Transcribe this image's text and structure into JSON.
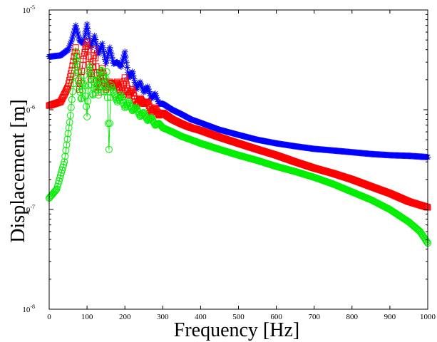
{
  "chart_data": {
    "type": "line",
    "title": "",
    "xlabel": "Frequency [Hz]",
    "ylabel": "Displacement [m]",
    "xlim": [
      0,
      1000
    ],
    "ylim": [
      1e-08,
      1e-05
    ],
    "yscale": "log",
    "grid": false,
    "legend": "none",
    "xticks": [
      0,
      100,
      200,
      300,
      400,
      500,
      600,
      700,
      800,
      900,
      1000
    ],
    "yticks": [
      {
        "value": 1e-08,
        "base": "10",
        "exp": "-8"
      },
      {
        "value": 1e-07,
        "base": "10",
        "exp": "-7"
      },
      {
        "value": 1e-06,
        "base": "10",
        "exp": "-6"
      },
      {
        "value": 1e-05,
        "base": "10",
        "exp": "-5"
      }
    ],
    "series": [
      {
        "color": "#0000ff",
        "marker": "star",
        "x": [
          0,
          30,
          50,
          60,
          70,
          80,
          90,
          100,
          110,
          120,
          130,
          140,
          150,
          160,
          170,
          180,
          190,
          200,
          210,
          220,
          230,
          240,
          250,
          260,
          270,
          280,
          290,
          300,
          325,
          350,
          375,
          400,
          450,
          500,
          550,
          600,
          650,
          700,
          750,
          800,
          850,
          900,
          950,
          1000
        ],
        "y": [
          3.4e-06,
          3.5e-06,
          4e-06,
          5e-06,
          7e-06,
          5e-06,
          4.6e-06,
          7.2e-06,
          4.2e-06,
          5.5e-06,
          3.6e-06,
          4.6e-06,
          2.9e-06,
          4.2e-06,
          2.9e-06,
          3e-06,
          2.7e-06,
          3.8e-06,
          2.1e-06,
          2.4e-06,
          1.6e-06,
          1.9e-06,
          1.5e-06,
          1.7e-06,
          1.3e-06,
          1.45e-06,
          1.15e-06,
          1.15e-06,
          1e-06,
          9e-07,
          8e-07,
          7.4e-07,
          6.3e-07,
          5.6e-07,
          5e-07,
          4.6e-07,
          4.3e-07,
          4.05e-07,
          3.9e-07,
          3.75e-07,
          3.6e-07,
          3.5e-07,
          3.45e-07,
          3.35e-07
        ]
      },
      {
        "color": "#ff0000",
        "marker": "square",
        "x": [
          0,
          30,
          50,
          60,
          70,
          80,
          90,
          100,
          110,
          120,
          130,
          140,
          150,
          160,
          170,
          180,
          190,
          200,
          210,
          220,
          230,
          240,
          250,
          260,
          270,
          280,
          290,
          300,
          325,
          350,
          375,
          400,
          450,
          500,
          550,
          600,
          650,
          700,
          750,
          800,
          850,
          900,
          950,
          1000
        ],
        "y": [
          1.1e-06,
          1.2e-06,
          1.7e-06,
          2.5e-06,
          4.2e-06,
          1.6e-06,
          3.2e-06,
          4.8e-06,
          2e-06,
          4e-06,
          1.5e-06,
          2.6e-06,
          1.6e-06,
          1.9e-06,
          1.7e-06,
          1.9e-06,
          1.4e-06,
          2.1e-06,
          1.4e-06,
          1.6e-06,
          1.1e-06,
          1.3e-06,
          1.15e-06,
          1.2e-06,
          9.5e-07,
          1.05e-06,
          8.8e-07,
          9.3e-07,
          8e-07,
          7.2e-07,
          6.6e-07,
          6.2e-07,
          5.3e-07,
          4.6e-07,
          4e-07,
          3.5e-07,
          3e-07,
          2.6e-07,
          2.3e-07,
          2e-07,
          1.7e-07,
          1.45e-07,
          1.2e-07,
          1.05e-07
        ]
      },
      {
        "color": "#00ee00",
        "marker": "circle",
        "x": [
          0,
          20,
          40,
          55,
          65,
          72,
          78,
          85,
          92,
          100,
          107,
          115,
          122,
          130,
          137,
          145,
          152,
          158,
          163,
          170,
          180,
          190,
          200,
          210,
          220,
          230,
          240,
          250,
          260,
          270,
          280,
          290,
          300,
          325,
          350,
          375,
          400,
          450,
          500,
          550,
          600,
          650,
          700,
          750,
          800,
          850,
          900,
          950,
          980,
          1000
        ],
        "y": [
          1.3e-07,
          1.6e-07,
          3e-07,
          8e-07,
          2e-06,
          3.8e-06,
          2e-06,
          1.2e-06,
          2.2e-06,
          8.5e-07,
          3e-06,
          1.3e-06,
          2.2e-06,
          1.4e-06,
          2.7e-06,
          1.4e-06,
          2.4e-06,
          4e-07,
          1.8e-06,
          1.5e-06,
          1.2e-06,
          1.4e-06,
          1.05e-06,
          1.2e-06,
          9.8e-07,
          1.05e-06,
          8.6e-07,
          9.4e-07,
          7.8e-07,
          8.3e-07,
          7e-07,
          7.3e-07,
          6.6e-07,
          6e-07,
          5.4e-07,
          5e-07,
          4.6e-07,
          4e-07,
          3.5e-07,
          3.1e-07,
          2.7e-07,
          2.4e-07,
          2.1e-07,
          1.8e-07,
          1.5e-07,
          1.25e-07,
          1e-07,
          7.5e-08,
          6e-08,
          4.6e-08
        ]
      }
    ]
  }
}
